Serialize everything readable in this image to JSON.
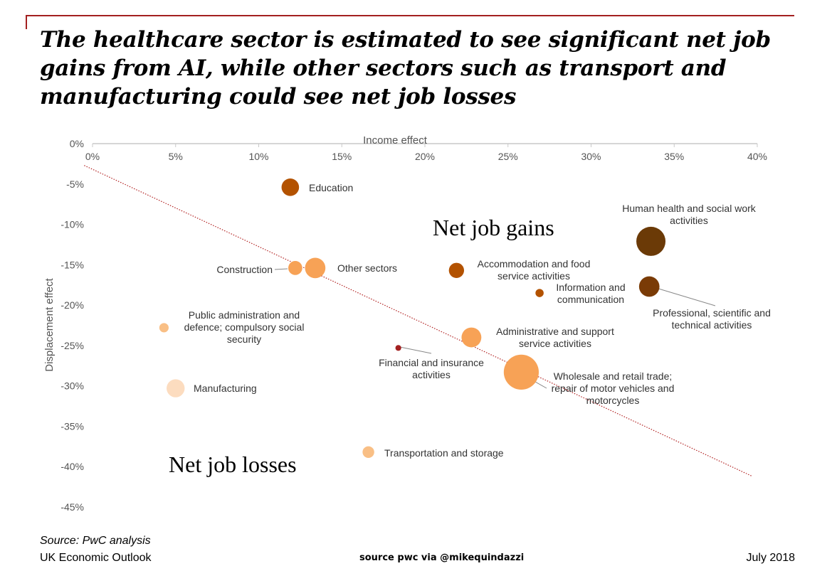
{
  "title": "The healthcare sector is estimated to see significant net job gains from AI, while other sectors such as transport and manufacturing could see net job losses",
  "footer": {
    "source": "Source: PwC analysis",
    "publication": "UK Economic Outlook",
    "credit": "source pwc via @mikequindazzi",
    "date": "July 2018"
  },
  "colors": {
    "accent": "#a32020",
    "trend_line": "#b22222",
    "axis": "#c8c8c8",
    "tick_text": "#555555"
  },
  "chart_data": {
    "type": "scatter",
    "xlabel": "Income effect",
    "ylabel": "Displacement effect",
    "xlim": [
      0,
      40
    ],
    "ylim": [
      -45,
      0
    ],
    "x_ticks": [
      0,
      5,
      10,
      15,
      20,
      25,
      30,
      35,
      40
    ],
    "x_tick_labels": [
      "0%",
      "5%",
      "10%",
      "15%",
      "20%",
      "25%",
      "30%",
      "35%",
      "40%"
    ],
    "y_ticks": [
      0,
      -5,
      -10,
      -15,
      -20,
      -25,
      -30,
      -35,
      -40,
      -45
    ],
    "y_tick_labels": [
      "0%",
      "-5%",
      "-10%",
      "-15%",
      "-20%",
      "-25%",
      "-30%",
      "-35%",
      "-40%",
      "-45%"
    ],
    "x_axis_position": "top",
    "trend_line": {
      "from": [
        -0.5,
        -2.7
      ],
      "to": [
        39.7,
        -41.2
      ],
      "style": "dotted"
    },
    "region_labels": [
      "Net job gains",
      "Net job losses"
    ],
    "points": [
      {
        "label": "Education",
        "x": 11.9,
        "y": -5.4,
        "size": 3,
        "color": "#b35200"
      },
      {
        "label": "Human health and social work activities",
        "x": 33.6,
        "y": -12.1,
        "size": 5,
        "color": "#6b3a07"
      },
      {
        "label": "Construction",
        "x": 12.2,
        "y": -15.4,
        "size": 2.4,
        "color": "#f7a256"
      },
      {
        "label": "Other sectors",
        "x": 13.4,
        "y": -15.4,
        "size": 3.5,
        "color": "#f7a256"
      },
      {
        "label": "Accommodation and food service activities",
        "x": 21.9,
        "y": -15.7,
        "size": 2.6,
        "color": "#b35200"
      },
      {
        "label": "Information and communication",
        "x": 26.9,
        "y": -18.5,
        "size": 1.4,
        "color": "#b35200"
      },
      {
        "label": "Professional, scientific and technical activities",
        "x": 33.5,
        "y": -17.7,
        "size": 3.5,
        "color": "#7a3b06"
      },
      {
        "label": "Public administration and defence; compulsory social security",
        "x": 4.3,
        "y": -22.8,
        "size": 1.6,
        "color": "#f9bf85"
      },
      {
        "label": "Administrative and support service activities",
        "x": 22.8,
        "y": -24.0,
        "size": 3.4,
        "color": "#f7a256"
      },
      {
        "label": "Financial and insurance activities",
        "x": 18.4,
        "y": -25.3,
        "size": 1.0,
        "color": "#a32020"
      },
      {
        "label": "Wholesale and retail trade; repair of motor vehicles and motorcycles",
        "x": 25.8,
        "y": -28.3,
        "size": 6,
        "color": "#f7a256"
      },
      {
        "label": "Manufacturing",
        "x": 5.0,
        "y": -30.3,
        "size": 3.1,
        "color": "#fcdcbf"
      },
      {
        "label": "Transportation and storage",
        "x": 16.6,
        "y": -38.2,
        "size": 2,
        "color": "#f9bf85"
      }
    ]
  }
}
